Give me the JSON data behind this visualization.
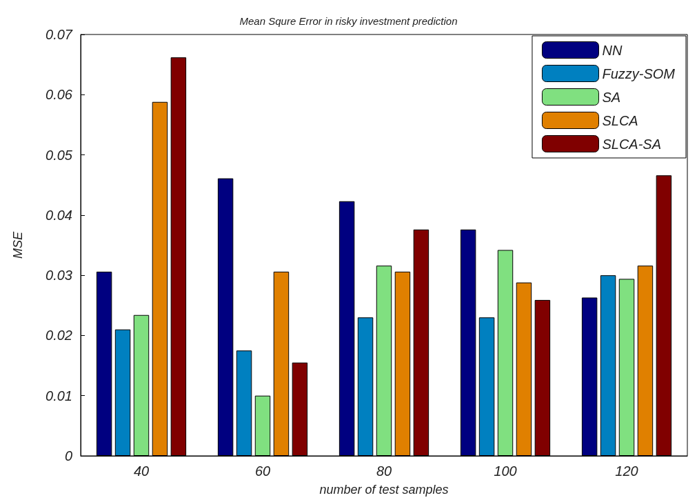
{
  "chart_data": {
    "type": "bar",
    "title": "Mean Squre Error in risky investment prediction",
    "xlabel": "number of test samples",
    "ylabel": "MSE",
    "categories": [
      "40",
      "60",
      "80",
      "100",
      "120"
    ],
    "series": [
      {
        "name": "NN",
        "color": "#000080",
        "values": [
          0.0306,
          0.0461,
          0.0423,
          0.0376,
          0.0263
        ]
      },
      {
        "name": "Fuzzy-SOM",
        "color": "#0080c0",
        "values": [
          0.021,
          0.0175,
          0.023,
          0.023,
          0.03
        ]
      },
      {
        "name": "SA",
        "color": "#80e080",
        "values": [
          0.0234,
          0.01,
          0.0316,
          0.0342,
          0.0294
        ]
      },
      {
        "name": "SLCA",
        "color": "#e08000",
        "values": [
          0.0588,
          0.0306,
          0.0306,
          0.0288,
          0.0316
        ]
      },
      {
        "name": "SLCA-SA",
        "color": "#800000",
        "values": [
          0.0662,
          0.0155,
          0.0376,
          0.0259,
          0.0466
        ]
      }
    ],
    "ylim": [
      0,
      0.07
    ],
    "yticks": [
      0,
      0.01,
      0.02,
      0.03,
      0.04,
      0.05,
      0.06,
      0.07
    ],
    "grid": false,
    "legend": "top right"
  }
}
